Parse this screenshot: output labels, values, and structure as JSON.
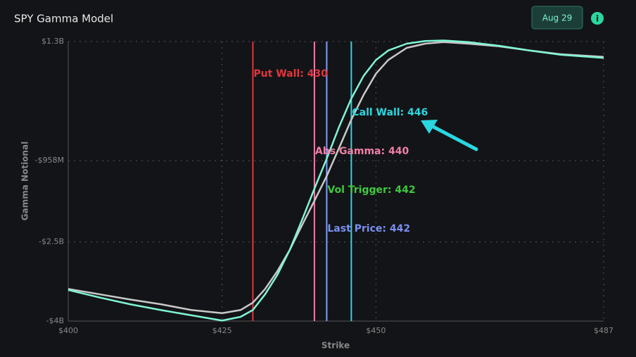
{
  "header": {
    "title": "SPY Gamma Model",
    "date_button": "Aug 29"
  },
  "chart_data": {
    "type": "line",
    "x_label": "Strike",
    "y_label": "Gamma Notional",
    "x": [
      400,
      405,
      410,
      415,
      420,
      425,
      428,
      430,
      432,
      434,
      436,
      438,
      440,
      442,
      444,
      446,
      448,
      450,
      452,
      455,
      458,
      461,
      465,
      470,
      475,
      480,
      487
    ],
    "series": [
      {
        "color": "#c8c8c8",
        "values": [
          -3390000000,
          -3490000000,
          -3590000000,
          -3680000000,
          -3790000000,
          -3850000000,
          -3790000000,
          -3650000000,
          -3390000000,
          -3050000000,
          -2650000000,
          -2180000000,
          -1720000000,
          -1250000000,
          -720000000,
          -180000000,
          290000000,
          690000000,
          950000000,
          1180000000,
          1260000000,
          1290000000,
          1260000000,
          1210000000,
          1130000000,
          1060000000,
          1010000000
        ]
      },
      {
        "color": "#7ff5d6",
        "values": [
          -3410000000,
          -3550000000,
          -3680000000,
          -3790000000,
          -3890000000,
          -3990000000,
          -3920000000,
          -3790000000,
          -3490000000,
          -3120000000,
          -2650000000,
          -2080000000,
          -1490000000,
          -920000000,
          -320000000,
          220000000,
          650000000,
          950000000,
          1130000000,
          1260000000,
          1310000000,
          1320000000,
          1290000000,
          1220000000,
          1130000000,
          1050000000,
          990000000
        ]
      }
    ],
    "levels": [
      {
        "label": "Put Wall: 430",
        "value": 430,
        "color": "#e0353d"
      },
      {
        "label": "Call Wall: 446",
        "value": 446,
        "color": "#2ad7e0"
      },
      {
        "label": "Abs Gamma: 440",
        "value": 440,
        "color": "#f07fa6"
      },
      {
        "label": "Vol Trigger: 442",
        "value": 442,
        "color": "#3ec93e"
      },
      {
        "label": "Last Price: 442",
        "value": 442,
        "color": "#7a8ff0"
      }
    ],
    "xlim": [
      400,
      487
    ],
    "xticks": [
      {
        "value": 400,
        "label": "$400"
      },
      {
        "value": 425,
        "label": "$425"
      },
      {
        "value": 450,
        "label": "$450"
      },
      {
        "value": 487,
        "label": "$487"
      }
    ],
    "ylim": [
      -4000000000,
      1300000000
    ],
    "yticks": [
      {
        "value": -4000000000,
        "label": "-$4B"
      },
      {
        "value": -2500000000,
        "label": "-$2.5B"
      },
      {
        "value": -958000000,
        "label": "-$958M"
      },
      {
        "value": 1300000000,
        "label": "$1.3B"
      }
    ],
    "grid": true
  }
}
